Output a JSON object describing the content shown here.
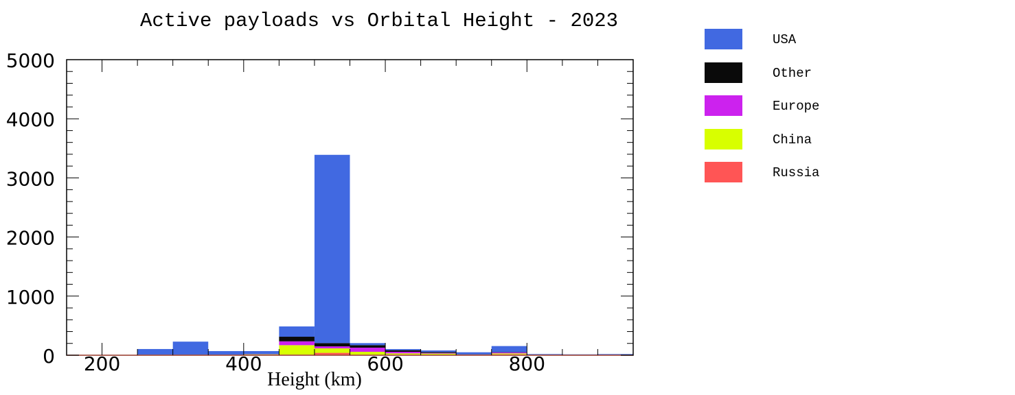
{
  "chart_data": {
    "type": "bar",
    "stacked": true,
    "title": "Active payloads vs Orbital Height - 2023",
    "xlabel": "Height (km)",
    "ylabel": "",
    "xlim": [
      150,
      950
    ],
    "ylim": [
      0,
      5000
    ],
    "xticks": [
      200,
      400,
      600,
      800
    ],
    "yticks": [
      0,
      1000,
      2000,
      3000,
      4000,
      5000
    ],
    "bin_width": 50,
    "bins": [
      150,
      200,
      250,
      300,
      350,
      400,
      450,
      500,
      550,
      600,
      650,
      700,
      750,
      800,
      850,
      900
    ],
    "legend_position": "right",
    "series": [
      {
        "name": "Russia",
        "color": "#ff5555",
        "values": [
          0,
          0,
          2,
          2,
          2,
          3,
          10,
          40,
          5,
          10,
          5,
          3,
          15,
          2,
          1,
          1
        ]
      },
      {
        "name": "China",
        "color": "#d8ff00",
        "values": [
          0,
          0,
          2,
          3,
          3,
          12,
          160,
          76,
          53,
          21,
          22,
          5,
          16,
          2,
          1,
          1
        ]
      },
      {
        "name": "Europe",
        "color": "#cc22ee",
        "values": [
          0,
          0,
          1,
          2,
          1,
          2,
          65,
          34,
          70,
          27,
          11,
          3,
          15,
          2,
          2,
          1
        ]
      },
      {
        "name": "Other",
        "color": "#0a0a0a",
        "values": [
          0,
          0,
          3,
          3,
          2,
          3,
          78,
          55,
          42,
          27,
          16,
          4,
          5,
          2,
          1,
          1
        ]
      },
      {
        "name": "USA",
        "color": "#4169e1",
        "values": [
          0,
          0,
          97,
          220,
          62,
          50,
          174,
          3185,
          35,
          19,
          27,
          35,
          104,
          12,
          10,
          16
        ]
      }
    ],
    "legend_order": [
      "USA",
      "Other",
      "Europe",
      "China",
      "Russia"
    ]
  }
}
